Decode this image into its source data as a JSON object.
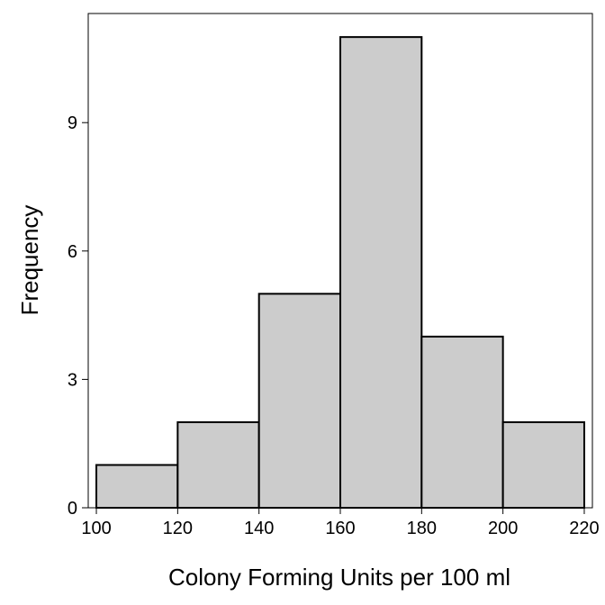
{
  "chart_data": {
    "type": "bar",
    "title": "",
    "xlabel": "Colony Forming Units per 100 ml",
    "ylabel": "Frequency",
    "bins": [
      {
        "start": 100,
        "end": 120,
        "count": 1
      },
      {
        "start": 120,
        "end": 140,
        "count": 2
      },
      {
        "start": 140,
        "end": 160,
        "count": 5
      },
      {
        "start": 160,
        "end": 180,
        "count": 11
      },
      {
        "start": 180,
        "end": 200,
        "count": 4
      },
      {
        "start": 200,
        "end": 220,
        "count": 2
      }
    ],
    "xlim": [
      98,
      222
    ],
    "ylim": [
      0,
      11.55
    ],
    "xticks": [
      "100",
      "120",
      "140",
      "160",
      "180",
      "200",
      "220"
    ],
    "yticks": [
      "0",
      "3",
      "6",
      "9"
    ],
    "grid": false,
    "legend": "none",
    "bar_fill": "#cccccc",
    "bar_stroke": "#000000",
    "frame_color": "#000000"
  }
}
